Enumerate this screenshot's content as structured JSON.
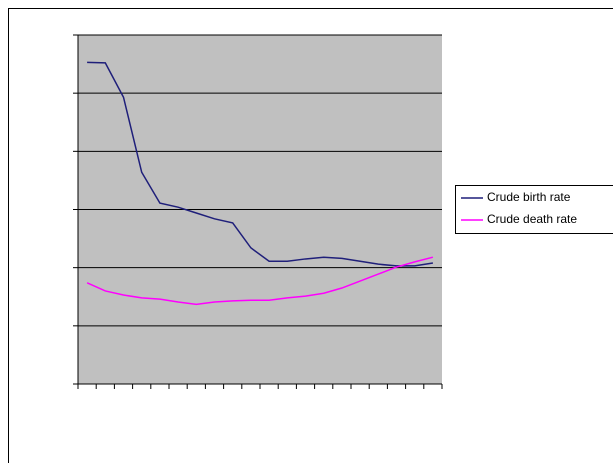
{
  "chart_data": {
    "type": "line",
    "categories": [
      null,
      null,
      null,
      null,
      null,
      null,
      null,
      null,
      null,
      null,
      null,
      null,
      null,
      null,
      null,
      null,
      null,
      null,
      null,
      null
    ],
    "series": [
      {
        "name": "Crude birth rate",
        "color": "#1f1f7a",
        "values": [
          55.3,
          55.2,
          49.3,
          36.4,
          31.1,
          30.4,
          29.4,
          28.4,
          27.7,
          23.4,
          21.1,
          21.1,
          21.5,
          21.8,
          21.6,
          21.1,
          20.6,
          20.3,
          20.3,
          20.8
        ]
      },
      {
        "name": "Crude death rate",
        "color": "#ff00ff",
        "values": [
          17.4,
          16.0,
          15.3,
          14.8,
          14.6,
          14.1,
          13.7,
          14.1,
          14.3,
          14.4,
          14.4,
          14.8,
          15.1,
          15.6,
          16.5,
          17.7,
          18.9,
          20.1,
          21.0,
          21.8
        ]
      }
    ],
    "ylim": [
      0,
      60
    ],
    "yticks": [
      0,
      10,
      20,
      30,
      40,
      50,
      60
    ],
    "grid": true,
    "legend": "right",
    "plot_background": "#c0c0c0"
  }
}
